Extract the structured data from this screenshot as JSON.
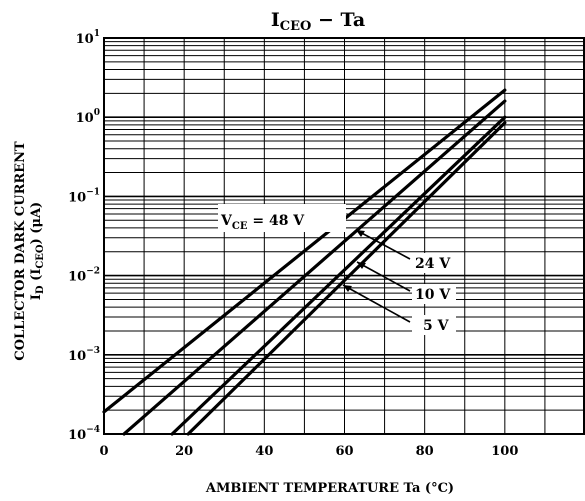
{
  "chart_data": {
    "type": "line",
    "title": {
      "main": "I",
      "sub": "CEO",
      "suffix": " − Ta"
    },
    "xlabel": "AMBIENT TEMPERATURE   Ta   (°C)",
    "ylabel": {
      "line1": "COLLECTOR DARK CURRENT",
      "line2_main": "I",
      "line2_sub1": "D",
      "line2_mid": " (I",
      "line2_sub2": "CEO",
      "line2_end": ")  (μA)"
    },
    "x_scale": "linear",
    "y_scale": "log",
    "xlim": [
      0,
      120
    ],
    "ylim": [
      0.0001,
      10
    ],
    "xticks": [
      {
        "value": 0,
        "label": "0"
      },
      {
        "value": 20,
        "label": "20"
      },
      {
        "value": 40,
        "label": "40"
      },
      {
        "value": 60,
        "label": "60"
      },
      {
        "value": 80,
        "label": "80"
      },
      {
        "value": 100,
        "label": "100"
      }
    ],
    "yticks": [
      {
        "value": 0.0001,
        "base": "10",
        "exp": "−4"
      },
      {
        "value": 0.001,
        "base": "10",
        "exp": "−3"
      },
      {
        "value": 0.01,
        "base": "10",
        "exp": "−2"
      },
      {
        "value": 0.1,
        "base": "10",
        "exp": "−1"
      },
      {
        "value": 1,
        "base": "10",
        "exp": "0"
      },
      {
        "value": 10,
        "base": "10",
        "exp": "1"
      }
    ],
    "grid": true,
    "series": [
      {
        "name": "48 V",
        "points": [
          [
            0,
            0.00019
          ],
          [
            100,
            2.2
          ]
        ]
      },
      {
        "name": "24 V",
        "points": [
          [
            5,
            0.0001
          ],
          [
            100,
            1.6
          ]
        ]
      },
      {
        "name": "10 V",
        "points": [
          [
            17,
            0.0001
          ],
          [
            100,
            1.0
          ]
        ]
      },
      {
        "name": "5 V",
        "points": [
          [
            21,
            0.0001
          ],
          [
            100,
            0.85
          ]
        ]
      }
    ],
    "annotations": {
      "vce": {
        "main": "V",
        "sub": "CE",
        "value": " = 48 V"
      },
      "v24": "24 V",
      "v10": "10 V",
      "v5": "5 V"
    }
  }
}
